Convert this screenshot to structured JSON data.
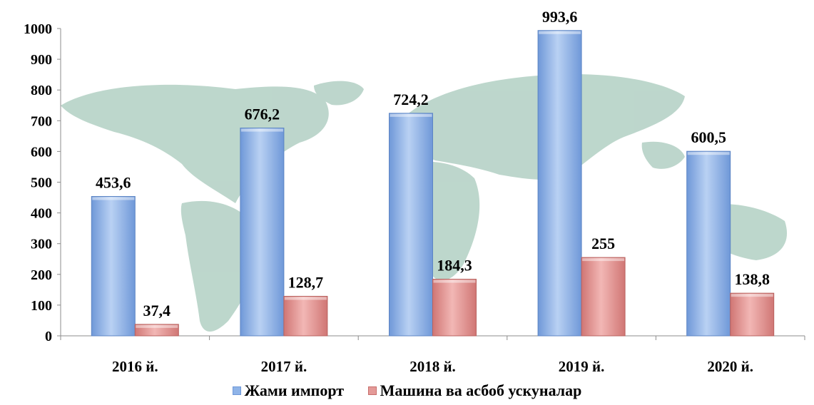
{
  "chart_data": {
    "type": "bar",
    "categories": [
      "2016 й.",
      "2017 й.",
      "2018 й.",
      "2019 й.",
      "2020 й."
    ],
    "series": [
      {
        "name": "Жами импорт",
        "values": [
          453.6,
          676.2,
          724.2,
          993.6,
          600.5
        ],
        "labels": [
          "453,6",
          "676,2",
          "724,2",
          "993,6",
          "600,5"
        ],
        "color": "#8fb4e8"
      },
      {
        "name": "Машина ва асбоб ускуналар",
        "values": [
          37.4,
          128.7,
          184.3,
          255,
          138.8
        ],
        "labels": [
          "37,4",
          "128,7",
          "184,3",
          "255",
          "138,8"
        ],
        "color": "#e49a98"
      }
    ],
    "yticks": [
      "0",
      "100",
      "200",
      "300",
      "400",
      "500",
      "600",
      "700",
      "800",
      "900",
      "1000"
    ],
    "ylim": [
      0,
      1000
    ],
    "title": "",
    "xlabel": "",
    "ylabel": "",
    "grid": false,
    "legend_position": "bottom",
    "background": "world-map"
  }
}
